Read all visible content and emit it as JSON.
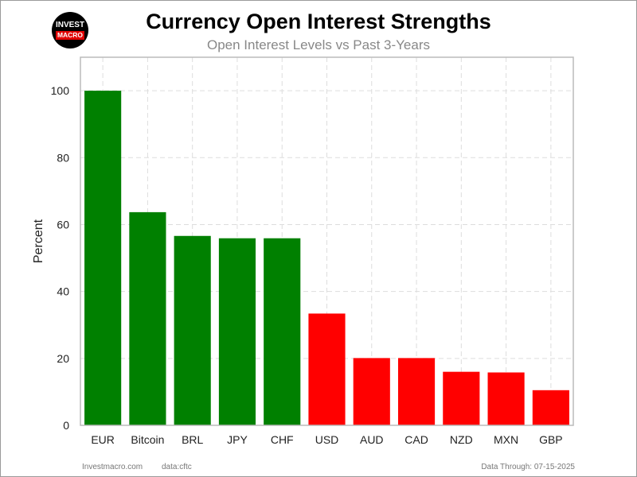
{
  "header": {
    "title": "Currency Open Interest Strengths",
    "subtitle": "Open Interest Levels vs Past 3-Years"
  },
  "logo": {
    "line1": "INVEST",
    "line2": "MACRO"
  },
  "footer": {
    "site": "Investmacro.com",
    "source": "data:cftc",
    "date_label": "Data Through: 07-15-2025"
  },
  "colors": {
    "positive": "#008000",
    "negative": "#ff0000",
    "grid": "#dddddd",
    "axis": "#bbbbbb"
  },
  "chart_data": {
    "type": "bar",
    "title": "Currency Open Interest Strengths",
    "subtitle": "Open Interest Levels vs Past 3-Years",
    "xlabel": "",
    "ylabel": "Percent",
    "ylim": [
      0,
      110
    ],
    "yticks": [
      0,
      20,
      40,
      60,
      80,
      100
    ],
    "grid": true,
    "categories": [
      "EUR",
      "Bitcoin",
      "BRL",
      "JPY",
      "CHF",
      "USD",
      "AUD",
      "CAD",
      "NZD",
      "MXN",
      "GBP"
    ],
    "values": [
      100,
      63.7,
      56.6,
      55.9,
      55.9,
      33.4,
      20.1,
      20.1,
      16.0,
      15.8,
      10.5
    ],
    "bar_colors": [
      "#008000",
      "#008000",
      "#008000",
      "#008000",
      "#008000",
      "#ff0000",
      "#ff0000",
      "#ff0000",
      "#ff0000",
      "#ff0000",
      "#ff0000"
    ]
  }
}
